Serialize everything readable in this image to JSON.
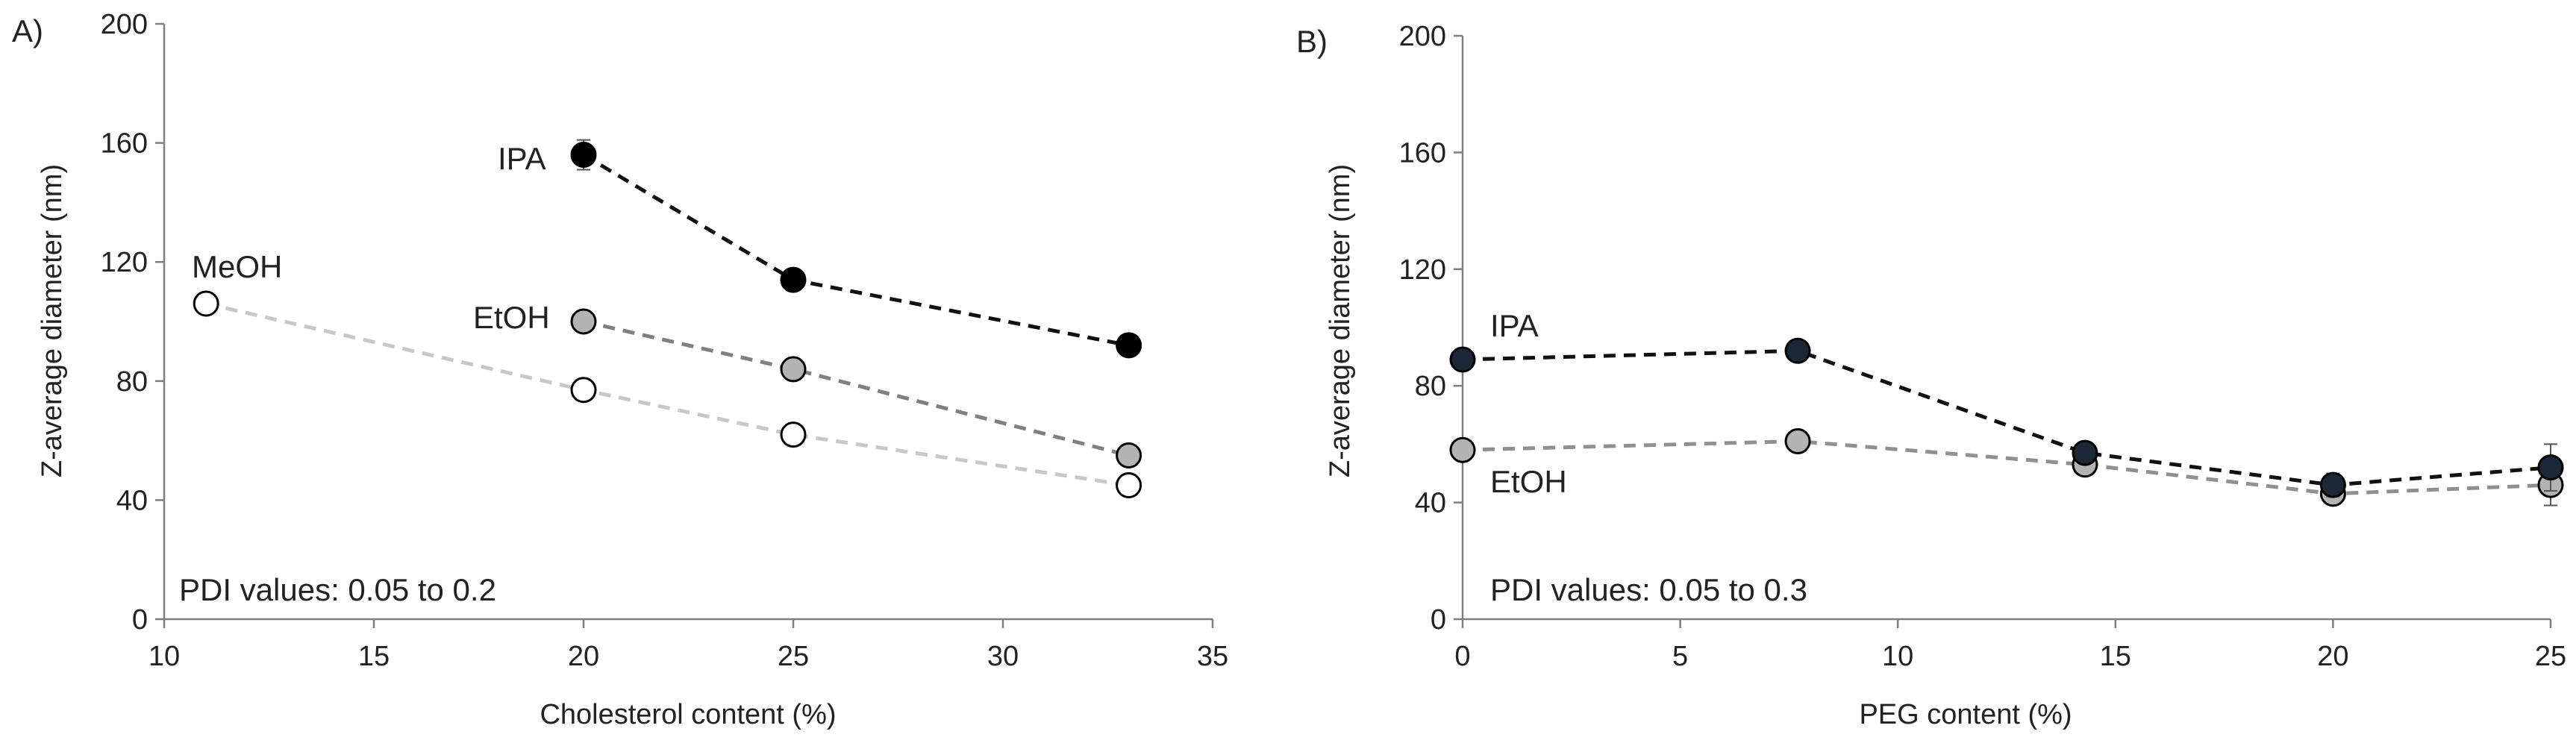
{
  "chart_data": [
    {
      "type": "line",
      "panel_label": "A)",
      "xlabel": "Cholesterol content (%)",
      "ylabel": "Z-average diameter (nm)",
      "xlim": [
        10,
        35
      ],
      "ylim": [
        0,
        200
      ],
      "xticks": [
        10,
        15,
        20,
        25,
        30,
        35
      ],
      "yticks": [
        0,
        40,
        80,
        120,
        160,
        200
      ],
      "grid": false,
      "note": "PDI values: 0.05 to 0.2",
      "series": [
        {
          "name": "IPA",
          "color": "#000000",
          "line_color": "#111111",
          "x": [
            20,
            25,
            33
          ],
          "values": [
            156,
            114,
            92
          ],
          "errors": [
            5,
            2,
            1
          ]
        },
        {
          "name": "EtOH",
          "color": "#b3b3b3",
          "line_color": "#808080",
          "x": [
            20,
            25,
            33
          ],
          "values": [
            100,
            84,
            55
          ],
          "errors": [
            1,
            1,
            1
          ]
        },
        {
          "name": "MeOH",
          "color": "#ffffff",
          "line_color": "#c8c8c8",
          "x": [
            11,
            20,
            25,
            33
          ],
          "values": [
            106,
            77,
            62,
            45
          ],
          "errors": [
            1,
            1,
            1,
            1
          ]
        }
      ]
    },
    {
      "type": "line",
      "panel_label": "B)",
      "xlabel": "PEG content (%)",
      "ylabel": "Z-average diameter (nm)",
      "xlim": [
        0,
        25
      ],
      "ylim": [
        0,
        200
      ],
      "xticks": [
        0,
        5,
        10,
        15,
        20,
        25
      ],
      "yticks": [
        0,
        40,
        80,
        120,
        160,
        200
      ],
      "grid": false,
      "note": "PDI values: 0.05 to 0.3",
      "series": [
        {
          "name": "IPA",
          "color": "#1c2738",
          "line_color": "#111111",
          "x": [
            0,
            7.7,
            14.3,
            20,
            25
          ],
          "values": [
            89,
            92,
            57,
            46,
            52
          ],
          "errors": [
            1,
            3,
            2,
            4,
            8
          ]
        },
        {
          "name": "EtOH",
          "color": "#b3b3b3",
          "line_color": "#909090",
          "x": [
            0,
            7.7,
            14.3,
            20,
            25
          ],
          "values": [
            58,
            61,
            53,
            43,
            46
          ],
          "errors": [
            1,
            1,
            1,
            2,
            7
          ]
        }
      ]
    }
  ]
}
